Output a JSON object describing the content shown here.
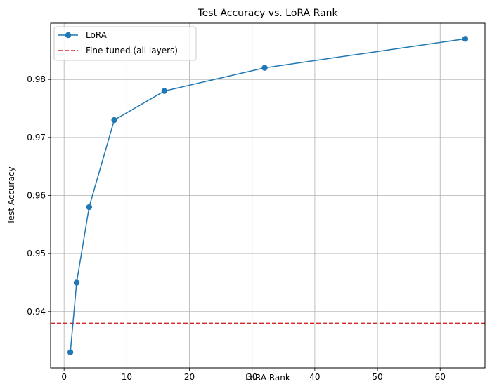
{
  "chart_data": {
    "type": "line",
    "title": "Test Accuracy vs. LoRA Rank",
    "xlabel": "LoRA Rank",
    "ylabel": "Test Accuracy",
    "xlim": [
      -2.15,
      67.15
    ],
    "ylim": [
      0.9303,
      0.9897
    ],
    "xticks": [
      0,
      10,
      20,
      30,
      40,
      50,
      60
    ],
    "yticks": [
      0.94,
      0.95,
      0.96,
      0.97,
      0.98
    ],
    "ytick_labels": [
      "0.94",
      "0.95",
      "0.96",
      "0.97",
      "0.98"
    ],
    "grid": true,
    "legend_position": "top-left",
    "series": [
      {
        "name": "LoRA",
        "color": "#1f77b4",
        "marker": "circle",
        "x": [
          1,
          2,
          4,
          8,
          16,
          32,
          64
        ],
        "y": [
          0.933,
          0.945,
          0.958,
          0.973,
          0.978,
          0.982,
          0.987
        ]
      }
    ],
    "reference_lines": [
      {
        "name": "Fine-tuned (all layers)",
        "y": 0.938,
        "color": "#d62728",
        "style": "dashed"
      }
    ]
  }
}
